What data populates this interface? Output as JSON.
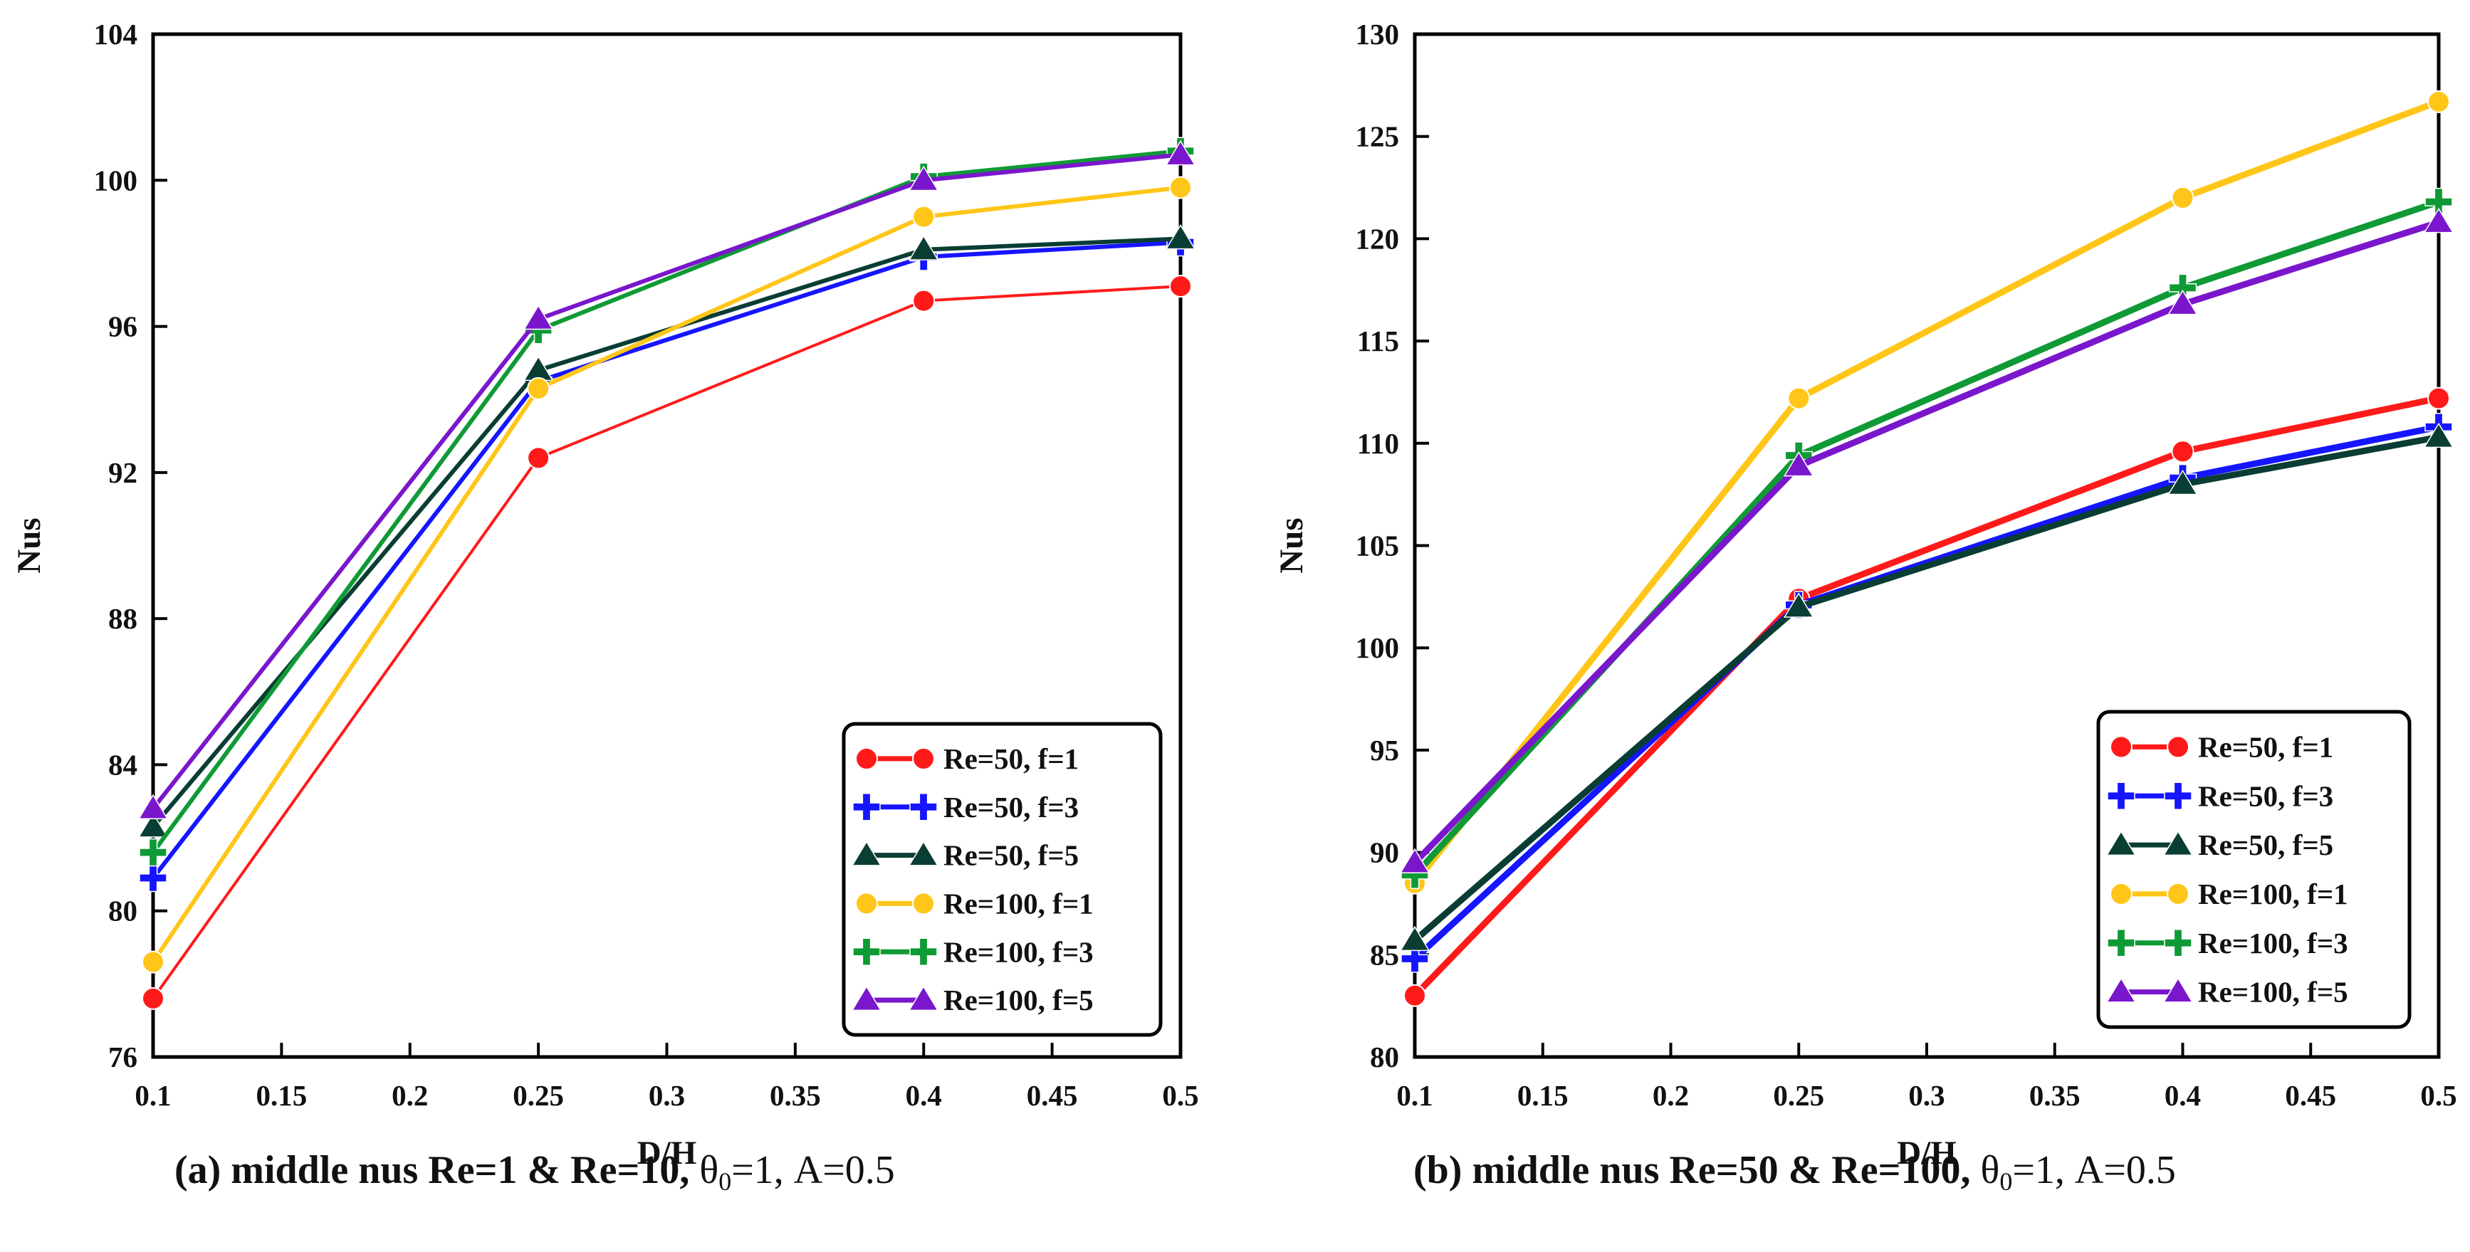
{
  "chart_data": [
    {
      "type": "line",
      "xlabel": "D/H",
      "ylabel": "Nus",
      "xlim": [
        0.1,
        0.5
      ],
      "ylim": [
        76,
        104
      ],
      "xticks": [
        "0.1",
        "0.15",
        "0.2",
        "0.25",
        "0.3",
        "0.35",
        "0.4",
        "0.45",
        "0.5"
      ],
      "yticks": [
        "76",
        "80",
        "84",
        "88",
        "92",
        "96",
        "100",
        "104"
      ],
      "legend_position": "bottom-right",
      "x": [
        0.1,
        0.25,
        0.4,
        0.5
      ],
      "series": [
        {
          "name": "Re=50, f=1",
          "values": [
            77.6,
            92.4,
            96.7,
            97.1
          ],
          "color": "#ff1a1a",
          "marker": "circle"
        },
        {
          "name": "Re=50, f=3",
          "values": [
            80.9,
            94.5,
            97.9,
            98.3
          ],
          "color": "#1515ff",
          "marker": "plus"
        },
        {
          "name": "Re=50, f=5",
          "values": [
            82.3,
            94.8,
            98.1,
            98.4
          ],
          "color": "#0a3d33",
          "marker": "triangle"
        },
        {
          "name": "Re=100, f=1",
          "values": [
            78.6,
            94.3,
            99.0,
            99.8
          ],
          "color": "#ffc619",
          "marker": "circle"
        },
        {
          "name": "Re=100, f=3",
          "values": [
            81.6,
            95.9,
            100.1,
            100.8
          ],
          "color": "#0f9a35",
          "marker": "plus"
        },
        {
          "name": "Re=100, f=5",
          "values": [
            82.8,
            96.2,
            100.0,
            100.7
          ],
          "color": "#7a16cc",
          "marker": "triangle"
        }
      ]
    },
    {
      "type": "line",
      "xlabel": "D/H",
      "ylabel": "Nus",
      "xlim": [
        0.1,
        0.5
      ],
      "ylim": [
        80,
        130
      ],
      "xticks": [
        "0.1",
        "0.15",
        "0.2",
        "0.25",
        "0.3",
        "0.35",
        "0.4",
        "0.45",
        "0.5"
      ],
      "yticks": [
        "80",
        "85",
        "90",
        "95",
        "100",
        "105",
        "110",
        "115",
        "120",
        "125",
        "130"
      ],
      "legend_position": "bottom-right",
      "x": [
        0.1,
        0.25,
        0.4,
        0.5
      ],
      "series": [
        {
          "name": "Re=50, f=1",
          "values": [
            83.0,
            102.4,
            109.6,
            112.2
          ],
          "color": "#ff1a1a",
          "marker": "circle"
        },
        {
          "name": "Re=50, f=3",
          "values": [
            84.8,
            102.1,
            108.3,
            110.8
          ],
          "color": "#1515ff",
          "marker": "plus"
        },
        {
          "name": "Re=50, f=5",
          "values": [
            85.7,
            102.0,
            108.0,
            110.3
          ],
          "color": "#0a3d33",
          "marker": "triangle"
        },
        {
          "name": "Re=100, f=1",
          "values": [
            88.5,
            112.2,
            122.0,
            126.7
          ],
          "color": "#ffc619",
          "marker": "circle"
        },
        {
          "name": "Re=100, f=3",
          "values": [
            88.9,
            109.4,
            117.6,
            121.8
          ],
          "color": "#0f9a35",
          "marker": "plus"
        },
        {
          "name": "Re=100, f=5",
          "values": [
            89.5,
            108.9,
            116.8,
            120.8
          ],
          "color": "#7a16cc",
          "marker": "triangle"
        }
      ]
    }
  ],
  "captions": [
    {
      "label": "(a) middle nus Re=1 & Re=10,",
      "theta": "θ",
      "theta_sub": "0",
      "params": "=1, A=0.5"
    },
    {
      "label": "(b) middle nus Re=50 & Re=100,",
      "theta": "θ",
      "theta_sub": "0",
      "params": "=1, A=0.5"
    }
  ]
}
